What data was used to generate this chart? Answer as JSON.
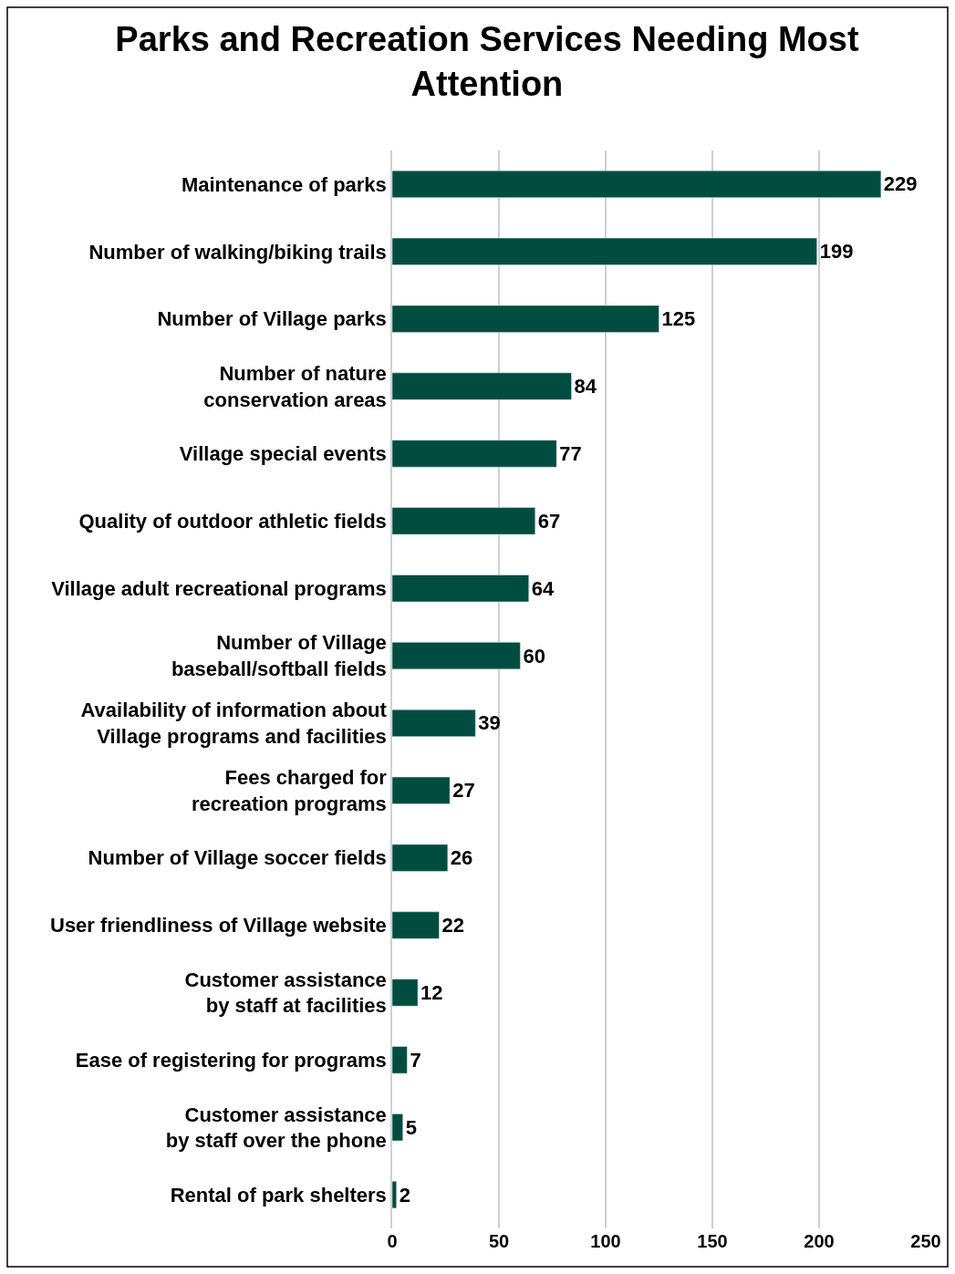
{
  "chart_data": {
    "type": "bar",
    "orientation": "horizontal",
    "title": "Parks and Recreation Services Needing Most\nAttention",
    "categories": [
      "Maintenance of parks",
      "Number of walking/biking trails",
      "Number of Village parks",
      "Number of nature\nconservation areas",
      "Village special events",
      "Quality of outdoor athletic fields",
      "Village adult recreational programs",
      "Number of Village\nbaseball/softball fields",
      "Availability of information about\nVillage programs and facilities",
      "Fees charged for\nrecreation programs",
      "Number of Village soccer fields",
      "User friendliness of Village website",
      "Customer assistance\nby staff at facilities",
      "Ease of registering for programs",
      "Customer assistance\nby staff over the phone",
      "Rental of park shelters"
    ],
    "values": [
      229,
      199,
      125,
      84,
      77,
      67,
      64,
      60,
      39,
      27,
      26,
      22,
      12,
      7,
      5,
      2
    ],
    "color": "#004d40",
    "xlim": [
      0,
      250
    ],
    "xticks": [
      0,
      50,
      100,
      150,
      200,
      250
    ],
    "grid": "x",
    "data_labels": true
  }
}
